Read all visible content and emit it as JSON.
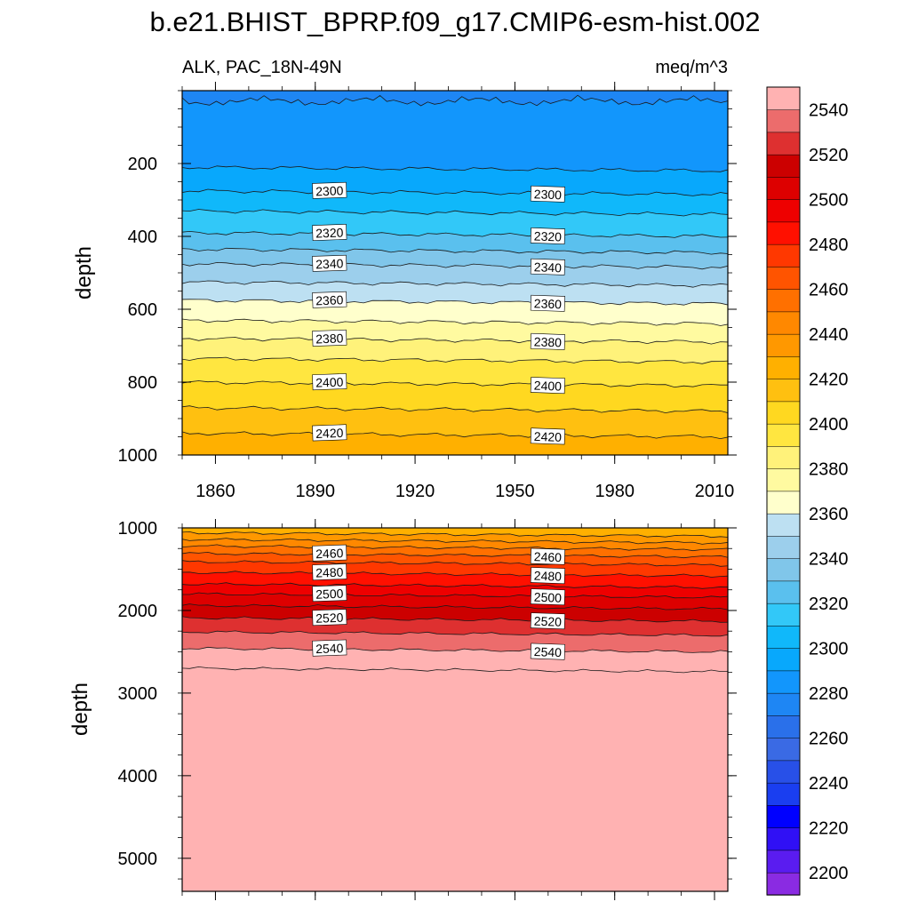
{
  "figure": {
    "title": "b.e21.BHIST_BPRP.f09_g17.CMIP6-esm-hist.002",
    "left_subtitle": "ALK, PAC_18N-49N",
    "right_subtitle": "meq/m^3"
  },
  "chart_data": [
    {
      "type": "heatmap",
      "panel": "upper",
      "title": "",
      "xlabel": "",
      "ylabel": "depth",
      "x_range": [
        1850,
        2014
      ],
      "ylim": [
        1000,
        0
      ],
      "x_ticks": [
        1860,
        1890,
        1920,
        1950,
        1980,
        2010
      ],
      "y_ticks": [
        200,
        400,
        600,
        800,
        1000
      ],
      "contour_interval": 10,
      "isolines": [
        {
          "value": 2290,
          "depth": 215,
          "labeled": false
        },
        {
          "value": 2300,
          "depth": 280,
          "labeled": true
        },
        {
          "value": 2310,
          "depth": 335,
          "labeled": false
        },
        {
          "value": 2320,
          "depth": 395,
          "labeled": true
        },
        {
          "value": 2330,
          "depth": 440,
          "labeled": false
        },
        {
          "value": 2340,
          "depth": 480,
          "labeled": true
        },
        {
          "value": 2350,
          "depth": 530,
          "labeled": false
        },
        {
          "value": 2360,
          "depth": 580,
          "labeled": true
        },
        {
          "value": 2370,
          "depth": 635,
          "labeled": false
        },
        {
          "value": 2380,
          "depth": 685,
          "labeled": true
        },
        {
          "value": 2390,
          "depth": 740,
          "labeled": false
        },
        {
          "value": 2400,
          "depth": 805,
          "labeled": true
        },
        {
          "value": 2410,
          "depth": 875,
          "labeled": false
        },
        {
          "value": 2420,
          "depth": 945,
          "labeled": true
        }
      ],
      "surface_value_range": [
        2280,
        2290
      ],
      "grid": false
    },
    {
      "type": "heatmap",
      "panel": "lower",
      "title": "",
      "xlabel": "",
      "ylabel": "depth",
      "x_range": [
        1850,
        2014
      ],
      "ylim": [
        5400,
        1000
      ],
      "x_ticks": [
        1860,
        1890,
        1920,
        1950,
        1980,
        2010
      ],
      "y_ticks": [
        1000,
        2000,
        3000,
        4000,
        5000
      ],
      "contour_interval": 10,
      "isolines": [
        {
          "value": 2430,
          "depth": 1080,
          "labeled": false
        },
        {
          "value": 2440,
          "depth": 1160,
          "labeled": false
        },
        {
          "value": 2450,
          "depth": 1240,
          "labeled": false
        },
        {
          "value": 2460,
          "depth": 1330,
          "labeled": true
        },
        {
          "value": 2470,
          "depth": 1430,
          "labeled": false
        },
        {
          "value": 2480,
          "depth": 1560,
          "labeled": true
        },
        {
          "value": 2490,
          "depth": 1700,
          "labeled": false
        },
        {
          "value": 2500,
          "depth": 1820,
          "labeled": true
        },
        {
          "value": 2510,
          "depth": 1960,
          "labeled": false
        },
        {
          "value": 2520,
          "depth": 2110,
          "labeled": true
        },
        {
          "value": 2530,
          "depth": 2280,
          "labeled": false
        },
        {
          "value": 2540,
          "depth": 2480,
          "labeled": true
        },
        {
          "value": 2550,
          "depth": 2720,
          "labeled": false
        }
      ],
      "deep_value": "> 2550",
      "grid": false
    }
  ],
  "colorbar": {
    "levels": [
      2200,
      2210,
      2220,
      2230,
      2240,
      2250,
      2260,
      2270,
      2280,
      2290,
      2300,
      2310,
      2320,
      2330,
      2340,
      2350,
      2360,
      2370,
      2380,
      2390,
      2400,
      2410,
      2420,
      2430,
      2440,
      2450,
      2460,
      2470,
      2480,
      2490,
      2500,
      2510,
      2520,
      2530,
      2540,
      2550
    ],
    "labels": [
      "2540",
      "2520",
      "2500",
      "2480",
      "2460",
      "2440",
      "2420",
      "2400",
      "2380",
      "2360",
      "2340",
      "2320",
      "2300",
      "2280",
      "2260",
      "2240",
      "2220",
      "2200"
    ],
    "colors": [
      "#8a2be2",
      "#5a1cf0",
      "#3010f5",
      "#0000ff",
      "#1a3ef0",
      "#2850e8",
      "#3a6ae4",
      "#2a70ea",
      "#1e86f4",
      "#1296fc",
      "#08a8fc",
      "#10b8fa",
      "#32c8f8",
      "#5ac0ee",
      "#80c6ea",
      "#9ccfec",
      "#bde0f2",
      "#ffffcc",
      "#fffaa0",
      "#fff27a",
      "#ffe640",
      "#ffd820",
      "#ffc010",
      "#ffb000",
      "#ff9800",
      "#ff8800",
      "#ff7000",
      "#ff5400",
      "#ff3800",
      "#ff1000",
      "#ee0000",
      "#dd0000",
      "#cc0000",
      "#de3030",
      "#ec6c6c",
      "#ffb2b2"
    ]
  }
}
